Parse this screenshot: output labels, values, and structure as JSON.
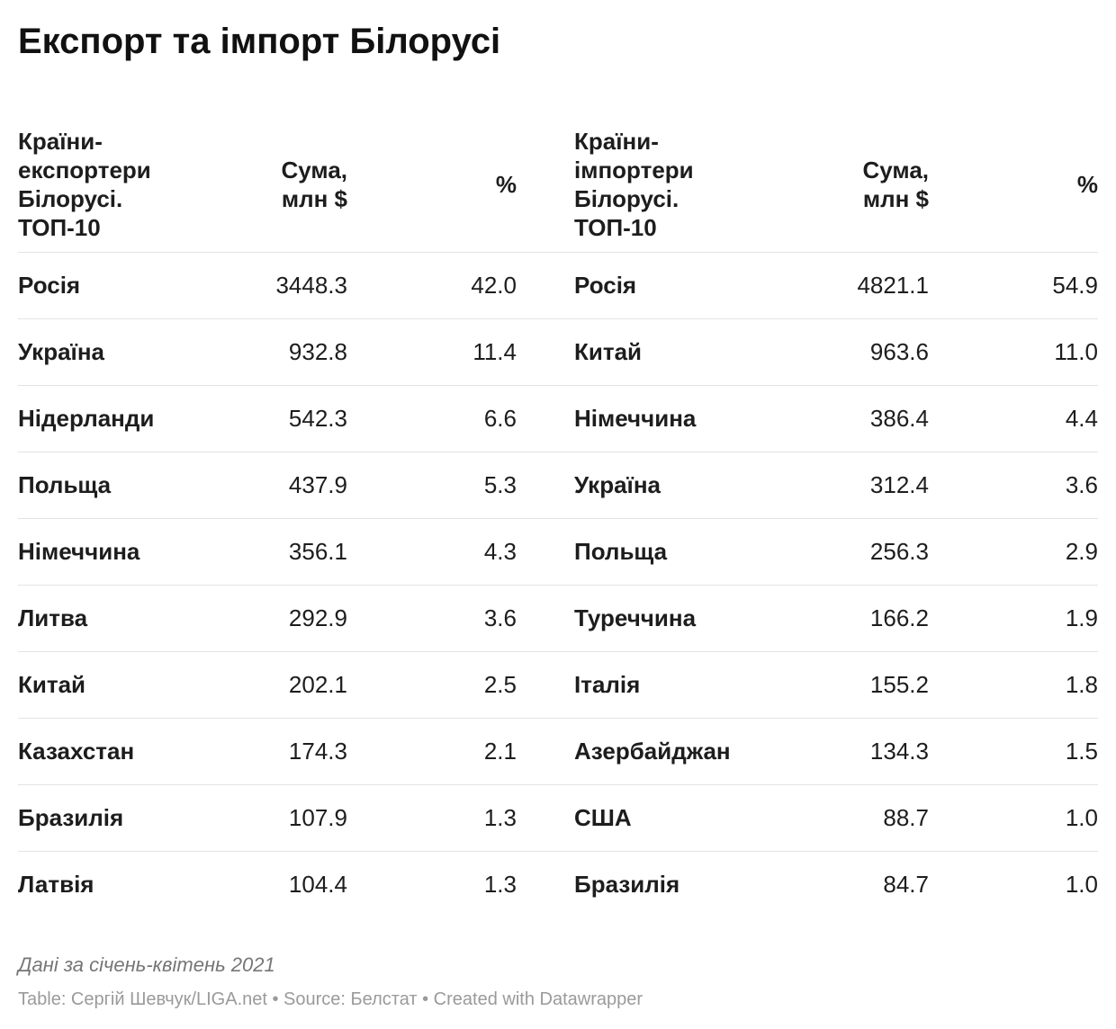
{
  "title": "Експорт та імпорт Білорусі",
  "headers": {
    "export_country": "Країни-\nекспортери\nБілорусі.\nТОП-10",
    "export_amount": "Сума,\nмлн $",
    "export_pct": "%",
    "import_country": "Країни-\nімпортери\nБілорусі.\nТОП-10",
    "import_amount": "Сума,\nмлн $",
    "import_pct": "%"
  },
  "chart_data": {
    "type": "table",
    "columns": [
      "Країни-експортери Білорусі. ТОП-10",
      "Сума, млн $",
      "%",
      "Країни-імпортери Білорусі. ТОП-10",
      "Сума, млн $",
      "%"
    ],
    "rows": [
      {
        "exp_country": "Росія",
        "exp_amount": "3448.3",
        "exp_pct": "42.0",
        "imp_country": "Росія",
        "imp_amount": "4821.1",
        "imp_pct": "54.9"
      },
      {
        "exp_country": "Україна",
        "exp_amount": "932.8",
        "exp_pct": "11.4",
        "imp_country": "Китай",
        "imp_amount": "963.6",
        "imp_pct": "11.0"
      },
      {
        "exp_country": "Нідерланди",
        "exp_amount": "542.3",
        "exp_pct": "6.6",
        "imp_country": "Німеччина",
        "imp_amount": "386.4",
        "imp_pct": "4.4"
      },
      {
        "exp_country": "Польща",
        "exp_amount": "437.9",
        "exp_pct": "5.3",
        "imp_country": "Україна",
        "imp_amount": "312.4",
        "imp_pct": "3.6"
      },
      {
        "exp_country": "Німеччина",
        "exp_amount": "356.1",
        "exp_pct": "4.3",
        "imp_country": "Польща",
        "imp_amount": "256.3",
        "imp_pct": "2.9"
      },
      {
        "exp_country": "Литва",
        "exp_amount": "292.9",
        "exp_pct": "3.6",
        "imp_country": "Туреччина",
        "imp_amount": "166.2",
        "imp_pct": "1.9"
      },
      {
        "exp_country": "Китай",
        "exp_amount": "202.1",
        "exp_pct": "2.5",
        "imp_country": "Італія",
        "imp_amount": "155.2",
        "imp_pct": "1.8"
      },
      {
        "exp_country": "Казахстан",
        "exp_amount": "174.3",
        "exp_pct": "2.1",
        "imp_country": "Азербайджан",
        "imp_amount": "134.3",
        "imp_pct": "1.5"
      },
      {
        "exp_country": "Бразилія",
        "exp_amount": "107.9",
        "exp_pct": "1.3",
        "imp_country": "США",
        "imp_amount": "88.7",
        "imp_pct": "1.0"
      },
      {
        "exp_country": "Латвія",
        "exp_amount": "104.4",
        "exp_pct": "1.3",
        "imp_country": "Бразилія",
        "imp_amount": "84.7",
        "imp_pct": "1.0"
      }
    ]
  },
  "notes": "Дані за січень-квітень 2021",
  "footer": "Table: Сергій Шевчук/LIGA.net • Source: Белстат • Created with Datawrapper"
}
